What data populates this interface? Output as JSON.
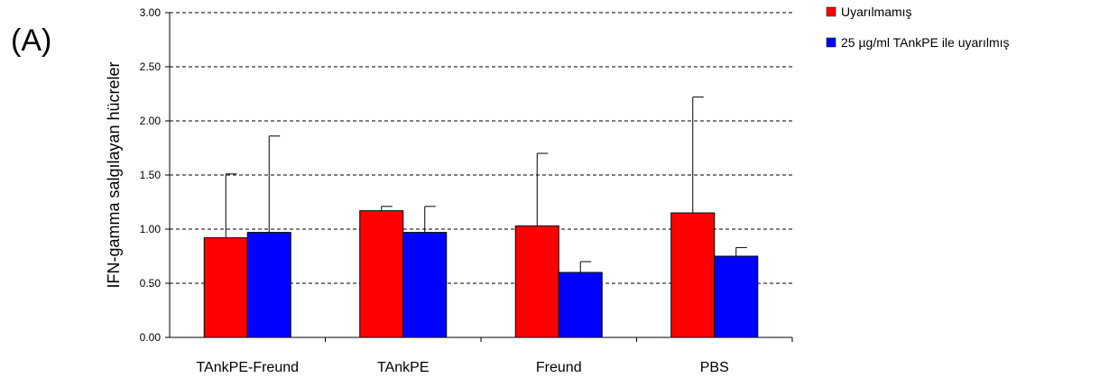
{
  "panel_label": "(A)",
  "chart_data": {
    "type": "bar",
    "title": "",
    "xlabel": "",
    "ylabel": "IFN-gamma salgılayan hücreler",
    "ylim": [
      0,
      3
    ],
    "yticks": [
      "0.00",
      "0.50",
      "1.00",
      "1.50",
      "2.00",
      "2.50",
      "3.00"
    ],
    "grid": "horizontal-dashed",
    "legend_position": "top-right",
    "categories": [
      "TAnkPE-Freund",
      "TAnkPE",
      "Freund",
      "PBS"
    ],
    "series": [
      {
        "name": "Uyarılmamış",
        "color": "#ff0000",
        "values": [
          0.92,
          1.17,
          1.03,
          1.15
        ],
        "error": [
          0.59,
          0.04,
          0.67,
          1.07
        ]
      },
      {
        "name": "25 µg/ml TAnkPE ile uyarılmış",
        "color": "#0000ff",
        "values": [
          0.97,
          0.97,
          0.6,
          0.75
        ],
        "error": [
          0.89,
          0.24,
          0.1,
          0.08
        ]
      }
    ]
  }
}
